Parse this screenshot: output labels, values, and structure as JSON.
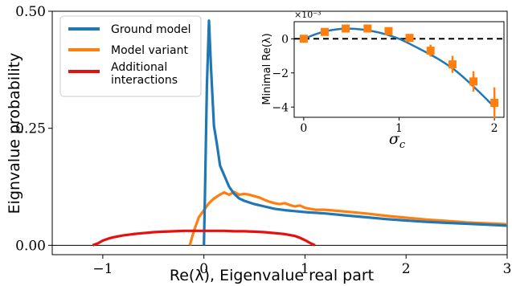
{
  "chart_data": [
    {
      "type": "line",
      "xlabel": "Re(λ), Eigenvalue real part",
      "ylabel": "Eignvalue probability",
      "xlim": [
        -1.5,
        3.0
      ],
      "ylim": [
        -0.02,
        0.5
      ],
      "x_ticks": [
        -1,
        0,
        1,
        2,
        3
      ],
      "x_tick_labels": [
        "−1",
        "0",
        "1",
        "2",
        "3"
      ],
      "y_ticks": [
        0.0,
        0.25,
        0.5
      ],
      "y_tick_labels": [
        "0.00",
        "0.25",
        "0.50"
      ],
      "legend_position": "top-left",
      "colors": {
        "ground": "#1f77b4",
        "variant": "#ff7f0e",
        "additional": "#e8100f"
      },
      "series": [
        {
          "name": "Ground model",
          "x": [
            0.0,
            0.01,
            0.03,
            0.05,
            0.07,
            0.1,
            0.13,
            0.16,
            0.2,
            0.25,
            0.3,
            0.35,
            0.4,
            0.5,
            0.6,
            0.7,
            0.8,
            0.9,
            1.0,
            1.2,
            1.4,
            1.6,
            1.8,
            2.0,
            2.2,
            2.4,
            2.6,
            2.8,
            3.0
          ],
          "y": [
            0.0,
            0.1,
            0.34,
            0.48,
            0.38,
            0.255,
            0.215,
            0.17,
            0.15,
            0.125,
            0.11,
            0.1,
            0.095,
            0.088,
            0.083,
            0.078,
            0.075,
            0.073,
            0.071,
            0.068,
            0.064,
            0.06,
            0.056,
            0.053,
            0.05,
            0.048,
            0.046,
            0.044,
            0.042
          ]
        },
        {
          "name": "Model variant",
          "x": [
            -0.14,
            -0.1,
            -0.05,
            0.0,
            0.05,
            0.1,
            0.15,
            0.2,
            0.25,
            0.3,
            0.35,
            0.4,
            0.45,
            0.5,
            0.55,
            0.6,
            0.65,
            0.7,
            0.75,
            0.8,
            0.85,
            0.9,
            0.95,
            1.0,
            1.1,
            1.2,
            1.4,
            1.6,
            1.8,
            2.0,
            2.2,
            2.4,
            2.6,
            2.8,
            3.0
          ],
          "y": [
            0.0,
            0.03,
            0.06,
            0.075,
            0.09,
            0.1,
            0.107,
            0.113,
            0.108,
            0.114,
            0.108,
            0.11,
            0.108,
            0.105,
            0.102,
            0.097,
            0.093,
            0.09,
            0.088,
            0.09,
            0.086,
            0.083,
            0.085,
            0.08,
            0.076,
            0.076,
            0.072,
            0.068,
            0.063,
            0.059,
            0.055,
            0.052,
            0.049,
            0.047,
            0.045
          ]
        },
        {
          "name": "Additional interactions",
          "x": [
            -1.1,
            -1.05,
            -1.0,
            -0.95,
            -0.9,
            -0.8,
            -0.7,
            -0.6,
            -0.5,
            -0.4,
            -0.3,
            -0.2,
            -0.1,
            0.0,
            0.1,
            0.2,
            0.3,
            0.4,
            0.5,
            0.6,
            0.7,
            0.8,
            0.9,
            0.95,
            1.0,
            1.05,
            1.1
          ],
          "y": [
            0.0,
            0.004,
            0.01,
            0.014,
            0.017,
            0.021,
            0.024,
            0.026,
            0.028,
            0.029,
            0.03,
            0.031,
            0.031,
            0.031,
            0.031,
            0.031,
            0.03,
            0.03,
            0.029,
            0.028,
            0.026,
            0.024,
            0.02,
            0.016,
            0.011,
            0.005,
            0.0
          ]
        }
      ]
    },
    {
      "type": "scatter",
      "xlabel": "σc",
      "xlabel_main": "σ",
      "xlabel_sub": "c",
      "ylabel": "Minimal Re(λ)",
      "y_multiplier": "×10⁻³",
      "xlim": [
        -0.1,
        2.1
      ],
      "ylim": [
        -4.6,
        1.0
      ],
      "x_ticks": [
        0,
        1,
        2
      ],
      "x_tick_labels": [
        "0",
        "1",
        "2"
      ],
      "y_ticks": [
        0,
        -2,
        -4
      ],
      "y_tick_labels": [
        "0",
        "−2",
        "−4"
      ],
      "reference_line": 0,
      "points": {
        "x": [
          0.0,
          0.22,
          0.44,
          0.67,
          0.89,
          1.11,
          1.33,
          1.56,
          1.78,
          2.0
        ],
        "y": [
          0.0,
          0.4,
          0.6,
          0.6,
          0.45,
          0.05,
          -0.7,
          -1.5,
          -2.5,
          -3.75
        ],
        "err": [
          0.15,
          0.15,
          0.15,
          0.15,
          0.15,
          0.2,
          0.35,
          0.5,
          0.6,
          0.9
        ]
      },
      "fit_curve": {
        "x": [
          0.0,
          0.2,
          0.4,
          0.6,
          0.8,
          1.0,
          1.2,
          1.4,
          1.6,
          1.8,
          2.0
        ],
        "y": [
          0.0,
          0.4,
          0.58,
          0.55,
          0.35,
          0.0,
          -0.55,
          -1.15,
          -1.9,
          -2.9,
          -4.0
        ]
      },
      "colors": {
        "points": "#ff7f0e",
        "curve": "#1f77b4",
        "reference": "#000000"
      }
    }
  ]
}
